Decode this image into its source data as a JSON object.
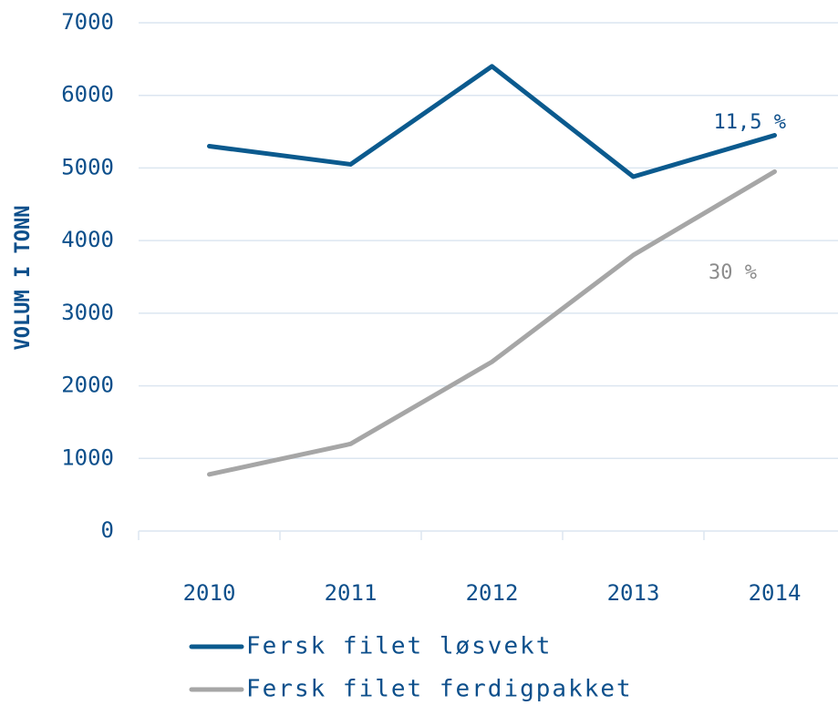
{
  "chart_data": {
    "type": "line",
    "y_label": "VOLUM I TONN",
    "categories": [
      "2010",
      "2011",
      "2012",
      "2013",
      "2014"
    ],
    "series": [
      {
        "name": "Fersk filet løsvekt",
        "color": "#0b5a8e",
        "values": [
          5300,
          5050,
          6400,
          4880,
          5450
        ]
      },
      {
        "name": "Fersk filet ferdigpakket",
        "color": "#a6a6a6",
        "values": [
          780,
          1200,
          2330,
          3800,
          4950
        ]
      }
    ],
    "annotations": [
      "11,5 %",
      "30 %"
    ],
    "ylim": [
      0,
      7000
    ],
    "yticks": [
      0,
      1000,
      2000,
      3000,
      4000,
      5000,
      6000,
      7000
    ],
    "grid": true,
    "legend": "bottom"
  }
}
